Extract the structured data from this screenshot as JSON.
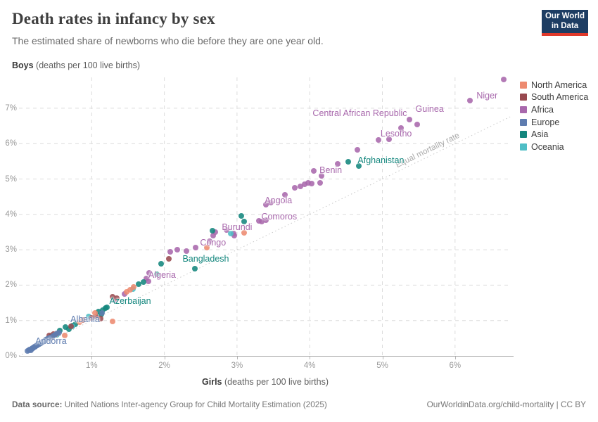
{
  "header": {
    "title": "Death rates in infancy by sex",
    "subtitle": "The estimated share of newborns who die before they are one year old.",
    "logo_line1": "Our World",
    "logo_line2": "in Data"
  },
  "axes": {
    "y_title_bold": "Boys",
    "y_title_rest": " (deaths per 100 live births)",
    "x_title_bold": "Girls",
    "x_title_rest": " (deaths per 100 live births)"
  },
  "footer": {
    "source_bold": "Data source:",
    "source_rest": " United Nations Inter-agency Group for Child Mortality Estimation (2025)",
    "credit": "OurWorldinData.org/child-mortality | CC BY"
  },
  "colors": {
    "northAmerica": "#ED8A70",
    "southAmerica": "#98494F",
    "africa": "#A868AC",
    "europe": "#5E7CAF",
    "asia": "#13867D",
    "oceania": "#4FBEC6"
  },
  "legend": [
    {
      "label": "North America",
      "key": "northAmerica"
    },
    {
      "label": "South America",
      "key": "southAmerica"
    },
    {
      "label": "Africa",
      "key": "africa"
    },
    {
      "label": "Europe",
      "key": "europe"
    },
    {
      "label": "Asia",
      "key": "asia"
    },
    {
      "label": "Oceania",
      "key": "oceania"
    }
  ],
  "chart_data": {
    "type": "scatter",
    "title": "Death rates in infancy by sex",
    "xlabel": "Girls (deaths per 100 live births)",
    "ylabel": "Boys (deaths per 100 live births)",
    "xlim": [
      0,
      6.78
    ],
    "ylim": [
      0,
      7.91
    ],
    "x_ticks": [
      {
        "v": 1,
        "label": "1%"
      },
      {
        "v": 2,
        "label": "2%"
      },
      {
        "v": 3,
        "label": "3%"
      },
      {
        "v": 4,
        "label": "4%"
      },
      {
        "v": 5,
        "label": "5%"
      },
      {
        "v": 6,
        "label": "6%"
      }
    ],
    "y_ticks": [
      {
        "v": 0,
        "label": "0%"
      },
      {
        "v": 1,
        "label": "1%"
      },
      {
        "v": 2,
        "label": "2%"
      },
      {
        "v": 3,
        "label": "3%"
      },
      {
        "v": 4,
        "label": "4%"
      },
      {
        "v": 5,
        "label": "5%"
      },
      {
        "v": 6,
        "label": "6%"
      },
      {
        "v": 7,
        "label": "7%"
      }
    ],
    "grid": true,
    "legend_position": "right",
    "equal_line": {
      "label": "Equal mortality rate",
      "from": [
        0,
        0
      ],
      "to": [
        6.78,
        6.78
      ],
      "label_at": 5.62
    },
    "series": [
      {
        "name": "Africa",
        "key": "africa",
        "points": [
          [
            6.67,
            7.81
          ],
          [
            6.21,
            7.22
          ],
          [
            5.37,
            6.68
          ],
          [
            5.48,
            6.54
          ],
          [
            5.26,
            6.44
          ],
          [
            4.95,
            6.1
          ],
          [
            5.09,
            6.12
          ],
          [
            4.66,
            5.83
          ],
          [
            4.39,
            5.43
          ],
          [
            4.06,
            5.23
          ],
          [
            4.16,
            5.09
          ],
          [
            3.93,
            4.85
          ],
          [
            3.98,
            4.9
          ],
          [
            4.03,
            4.87
          ],
          [
            4.14,
            4.89
          ],
          [
            3.79,
            4.75
          ],
          [
            3.87,
            4.79
          ],
          [
            3.66,
            4.55
          ],
          [
            3.4,
            4.27
          ],
          [
            3.47,
            4.33
          ],
          [
            3.34,
            3.8
          ],
          [
            3.3,
            3.82
          ],
          [
            3.4,
            3.84
          ],
          [
            2.95,
            3.46
          ],
          [
            2.96,
            3.4
          ],
          [
            2.86,
            3.56
          ],
          [
            2.67,
            3.4
          ],
          [
            2.7,
            3.5
          ],
          [
            2.62,
            3.24
          ],
          [
            2.43,
            3.06
          ],
          [
            2.3,
            2.96
          ],
          [
            2.18,
            3.0
          ],
          [
            2.08,
            2.94
          ],
          [
            1.79,
            2.35
          ],
          [
            1.78,
            2.11
          ],
          [
            1.75,
            2.19
          ],
          [
            1.45,
            1.75
          ],
          [
            1.32,
            1.58
          ]
        ]
      },
      {
        "name": "Asia",
        "key": "asia",
        "points": [
          [
            4.53,
            5.49
          ],
          [
            4.68,
            5.37
          ],
          [
            3.06,
            3.96
          ],
          [
            3.1,
            3.8
          ],
          [
            2.66,
            3.54
          ],
          [
            2.42,
            2.47
          ],
          [
            1.96,
            2.6
          ],
          [
            1.9,
            2.3
          ],
          [
            1.65,
            2.03
          ],
          [
            1.71,
            2.09
          ],
          [
            1.21,
            1.37
          ],
          [
            1.09,
            1.25
          ],
          [
            1.15,
            1.29
          ],
          [
            1.19,
            1.35
          ],
          [
            1.13,
            1.17
          ],
          [
            0.56,
            0.72
          ],
          [
            0.64,
            0.82
          ],
          [
            0.69,
            0.76
          ],
          [
            0.74,
            0.85
          ],
          [
            0.77,
            0.89
          ],
          [
            0.35,
            0.42
          ],
          [
            0.45,
            0.55
          ],
          [
            0.28,
            0.33
          ]
        ]
      },
      {
        "name": "Oceania",
        "key": "oceania",
        "points": [
          [
            2.91,
            3.46
          ],
          [
            1.57,
            1.88
          ],
          [
            0.96,
            1.12
          ],
          [
            0.74,
            0.83
          ],
          [
            0.52,
            0.6
          ],
          [
            0.42,
            0.5
          ]
        ]
      },
      {
        "name": "South America",
        "key": "southAmerica",
        "points": [
          [
            2.06,
            2.74
          ],
          [
            1.29,
            1.67
          ],
          [
            1.35,
            1.63
          ],
          [
            1.0,
            1.07
          ],
          [
            1.06,
            1.11
          ],
          [
            1.12,
            1.05
          ],
          [
            0.88,
            1.02
          ],
          [
            0.72,
            0.84
          ],
          [
            0.42,
            0.58
          ],
          [
            0.47,
            0.62
          ]
        ]
      },
      {
        "name": "North America",
        "key": "northAmerica",
        "points": [
          [
            3.1,
            3.48
          ],
          [
            2.58,
            3.06
          ],
          [
            1.53,
            1.87
          ],
          [
            1.58,
            1.95
          ],
          [
            1.48,
            1.81
          ],
          [
            1.29,
            0.98
          ],
          [
            1.05,
            1.22
          ],
          [
            0.83,
            0.95
          ],
          [
            0.63,
            0.57
          ],
          [
            0.51,
            0.62
          ],
          [
            0.45,
            0.52
          ]
        ]
      },
      {
        "name": "Europe",
        "key": "europe",
        "points": [
          [
            0.12,
            0.14
          ],
          [
            0.14,
            0.16
          ],
          [
            0.15,
            0.17
          ],
          [
            0.16,
            0.15
          ],
          [
            0.17,
            0.19
          ],
          [
            0.18,
            0.21
          ],
          [
            0.19,
            0.22
          ],
          [
            0.2,
            0.24
          ],
          [
            0.21,
            0.25
          ],
          [
            0.22,
            0.26
          ],
          [
            0.23,
            0.28
          ],
          [
            0.24,
            0.29
          ],
          [
            0.25,
            0.3
          ],
          [
            0.26,
            0.32
          ],
          [
            0.27,
            0.33
          ],
          [
            0.28,
            0.34
          ],
          [
            0.3,
            0.36
          ],
          [
            0.31,
            0.38
          ],
          [
            0.33,
            0.4
          ],
          [
            0.35,
            0.42
          ],
          [
            0.37,
            0.45
          ],
          [
            0.39,
            0.47
          ],
          [
            0.41,
            0.5
          ],
          [
            0.43,
            0.52
          ],
          [
            0.46,
            0.55
          ],
          [
            0.49,
            0.59
          ],
          [
            0.52,
            0.63
          ],
          [
            0.55,
            0.66
          ],
          [
            1.14,
            1.21
          ]
        ]
      }
    ],
    "point_labels": [
      {
        "text": "Niger",
        "x": 6.44,
        "y": 7.36,
        "key": "africa"
      },
      {
        "text": "Guinea",
        "x": 5.65,
        "y": 6.98,
        "key": "africa"
      },
      {
        "text": "Central African Republic",
        "x": 4.69,
        "y": 6.86,
        "key": "africa"
      },
      {
        "text": "Lesotho",
        "x": 5.19,
        "y": 6.28,
        "key": "africa"
      },
      {
        "text": "Afghanistan",
        "x": 4.98,
        "y": 5.53,
        "key": "asia"
      },
      {
        "text": "Benin",
        "x": 4.29,
        "y": 5.25,
        "key": "africa"
      },
      {
        "text": "Angola",
        "x": 3.57,
        "y": 4.39,
        "key": "africa"
      },
      {
        "text": "Comoros",
        "x": 3.58,
        "y": 3.94,
        "key": "africa"
      },
      {
        "text": "Burundi",
        "x": 3.0,
        "y": 3.64,
        "key": "africa"
      },
      {
        "text": "Congo",
        "x": 2.67,
        "y": 3.2,
        "key": "africa"
      },
      {
        "text": "Bangladesh",
        "x": 2.57,
        "y": 2.74,
        "key": "asia"
      },
      {
        "text": "Algeria",
        "x": 1.97,
        "y": 2.29,
        "key": "africa"
      },
      {
        "text": "Azerbaijan",
        "x": 1.53,
        "y": 1.55,
        "key": "asia"
      },
      {
        "text": "Albania",
        "x": 0.91,
        "y": 1.03,
        "key": "europe"
      },
      {
        "text": "Andorra",
        "x": 0.44,
        "y": 0.42,
        "key": "europe"
      }
    ]
  }
}
